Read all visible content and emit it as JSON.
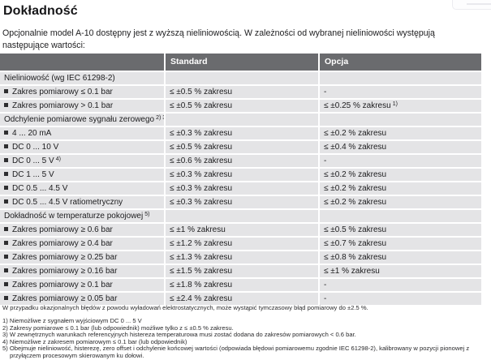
{
  "page": {
    "title": "Dokładność",
    "intro": "Opcjonalnie model A-10 dostępny jest z wyższą  nieliniowością. W zależności od wybranej nieliniowości występują następujące wartości:"
  },
  "table": {
    "columns": {
      "param": "",
      "standard": "Standard",
      "opcja": "Opcja"
    },
    "rows": [
      {
        "section": true,
        "label": "Nieliniowość (wg IEC 61298-2)",
        "standard": "",
        "opcja": ""
      },
      {
        "bullet": true,
        "label": "Zakres pomiarowy ≤ 0.1 bar",
        "standard": "≤ ±0.5 % zakresu",
        "opcja": "-"
      },
      {
        "bullet": true,
        "label": "Zakres pomiarowy > 0.1 bar",
        "standard": "≤ ±0.5 % zakresu",
        "opcja": "≤ ±0.25 % zakresu",
        "opcja_sup": "1)"
      },
      {
        "section": true,
        "label": "Odchylenie pomiarowe sygnału zerowego",
        "label_sup": "2) 3)",
        "standard": "",
        "opcja": ""
      },
      {
        "bullet": true,
        "label": "4 ... 20 mA",
        "standard": "≤ ±0.3 % zakresu",
        "opcja": "≤ ±0.2 % zakresu"
      },
      {
        "bullet": true,
        "label": "DC 0 ... 10 V",
        "standard": "≤ ±0.5 % zakresu",
        "opcja": "≤ ±0.4 % zakresu"
      },
      {
        "bullet": true,
        "label": "DC 0 ... 5 V",
        "label_sup": "4)",
        "standard": "≤ ±0.6 % zakresu",
        "opcja": "-"
      },
      {
        "bullet": true,
        "label": "DC 1 ... 5 V",
        "standard": "≤ ±0.3 % zakresu",
        "opcja": "≤ ±0.2 % zakresu"
      },
      {
        "bullet": true,
        "label": "DC 0.5 ... 4.5 V",
        "standard": "≤ ±0.3 % zakresu",
        "opcja": "≤ ±0.2 % zakresu"
      },
      {
        "bullet": true,
        "label": "DC 0.5 ... 4.5 V ratiometryczny",
        "standard": "≤ ±0.3 % zakresu",
        "opcja": "≤ ±0.2 % zakresu"
      },
      {
        "section": true,
        "label": "Dokładność w temperaturze pokojowej",
        "label_sup": "5)",
        "standard": "",
        "opcja": ""
      },
      {
        "bullet": true,
        "label": "Zakres pomiarowy ≥ 0.6 bar",
        "standard": "≤ ±1 % zakresu",
        "opcja": "≤ ±0.5 % zakresu"
      },
      {
        "bullet": true,
        "label": "Zakres pomiarowy ≥ 0.4 bar",
        "standard": "≤ ±1.2 % zakresu",
        "opcja": "≤ ±0.7 % zakresu"
      },
      {
        "bullet": true,
        "label": "Zakres pomiarowy ≥ 0.25 bar",
        "standard": "≤ ±1.3 % zakresu",
        "opcja": "≤ ±0.8 % zakresu"
      },
      {
        "bullet": true,
        "label": "Zakres pomiarowy ≥ 0.16 bar",
        "standard": "≤ ±1.5 % zakresu",
        "opcja": "≤ ±1 % zakresu"
      },
      {
        "bullet": true,
        "label": "Zakres pomiarowy ≥ 0.1 bar",
        "standard": "≤ ±1.8 % zakresu",
        "opcja": "-"
      },
      {
        "bullet": true,
        "label": "Zakres pomiarowy ≥ 0.05 bar",
        "standard": "≤ ±2.4 % zakresu",
        "opcja": "-"
      }
    ]
  },
  "footnotes": {
    "esd_note": "W przypadku okazjonalnych błędów z powodu wyładowań elektrostatycznych, może wystąpić tymczasowy błąd pomiarowy do ±2.5 %.",
    "items": [
      "1) Niemożliwe z sygnałem wyjściowym DC 0 ... 5 V",
      "2) Zakresy pomiarowe ≤ 0.1 bar (lub odpowiednik) możliwe tylko z ≤ ±0.5 % zakresu.",
      "3) W zewnętrznych warunkach referencyjnych histereza temperaturowa musi zostać dodana do zakresów pomiarowych < 0.6 bar.",
      "4) Niemożliwe z zakresem pomiarowym ≤ 0.1 bar (lub odpowiednik)",
      "5) Obejmuje nieliniowość, histerezę, zero offset i odchylenie końcowej wartości (odpowiada błędowi pomiarowemu zgodnie IEC 61298-2), kalibrowany w pozycji pionowej z przyłączem procesowym skierowanym ku dołowi."
    ]
  },
  "colors": {
    "header_bg": "#6a6b6e",
    "row_bg": "#e4e4e6",
    "header_text": "#ffffff"
  }
}
